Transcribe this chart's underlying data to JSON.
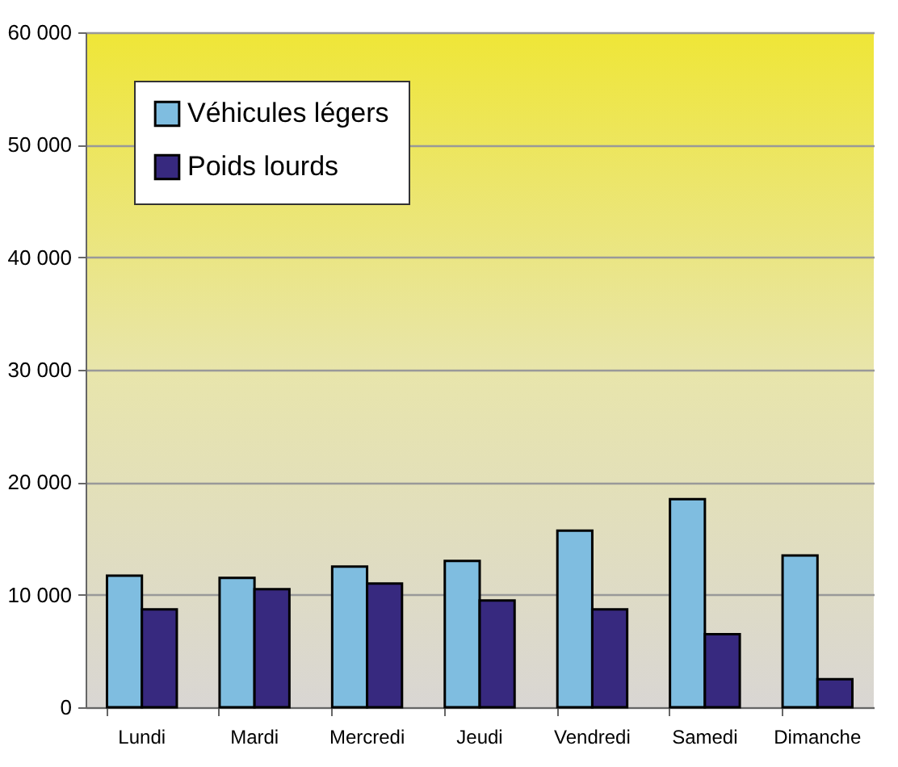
{
  "chart_data": {
    "type": "bar",
    "categories": [
      "Lundi",
      "Mardi",
      "Mercredi",
      "Jeudi",
      "Vendredi",
      "Samedi",
      "Dimanche"
    ],
    "series": [
      {
        "name": "Véhicules légers",
        "color": "#7fbde0",
        "values": [
          11700,
          11500,
          12500,
          13000,
          15700,
          18500,
          13500
        ]
      },
      {
        "name": "Poids lourds",
        "color": "#37297f",
        "values": [
          8700,
          10500,
          11000,
          9500,
          8700,
          6500,
          2500
        ]
      }
    ],
    "ylim": [
      0,
      60000
    ],
    "yticks": [
      0,
      {
        "value": 10000,
        "label": "10 000"
      },
      {
        "value": 20000,
        "label": "20 000"
      },
      {
        "value": 30000,
        "label": "30 000"
      },
      {
        "value": 40000,
        "label": "40 000"
      },
      {
        "value": 50000,
        "label": "50 000"
      },
      {
        "value": 60000,
        "label": "60 000"
      }
    ],
    "grid": "y",
    "legend": "top left"
  }
}
